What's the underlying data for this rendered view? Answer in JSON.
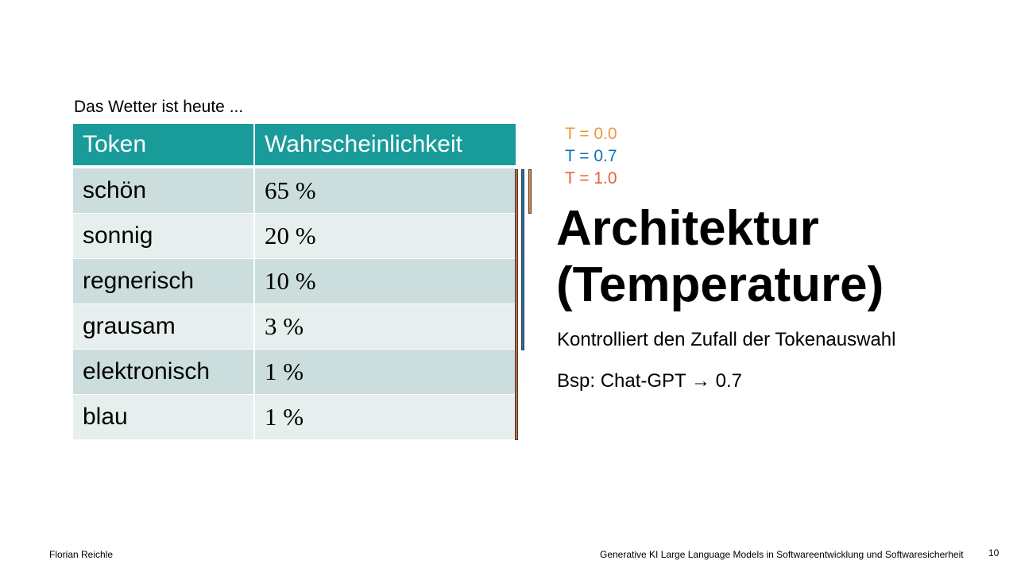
{
  "caption": "Das Wetter ist heute ...",
  "table": {
    "headers": [
      "Token",
      "Wahrscheinlichkeit"
    ],
    "rows": [
      [
        "schön",
        "65 %"
      ],
      [
        "sonnig",
        "20 %"
      ],
      [
        "regnerisch",
        "10 %"
      ],
      [
        "grausam",
        "3 %"
      ],
      [
        "elektronisch",
        "1 %"
      ],
      [
        "blau",
        "1 %"
      ]
    ]
  },
  "legend": [
    {
      "label": "T = 0.0",
      "color": "#f0953e"
    },
    {
      "label": "T = 0.7",
      "color": "#0d72b8"
    },
    {
      "label": "T = 1.0",
      "color": "#e5613d"
    }
  ],
  "bars": {
    "t00_color": "#e98536",
    "t07_color": "#1d6fb1",
    "t10_color": "#d0683c"
  },
  "title": {
    "line1": "Architektur",
    "line2": "(Temperature)"
  },
  "body": {
    "line1": "Kontrolliert den Zufall der Tokenauswahl",
    "line2": "Bsp: Chat-GPT → 0.7"
  },
  "footer": {
    "author": "Florian Reichle",
    "course": "Generative KI Large Language Models in Softwareentwicklung und Softwaresicherheit",
    "page": "10"
  }
}
